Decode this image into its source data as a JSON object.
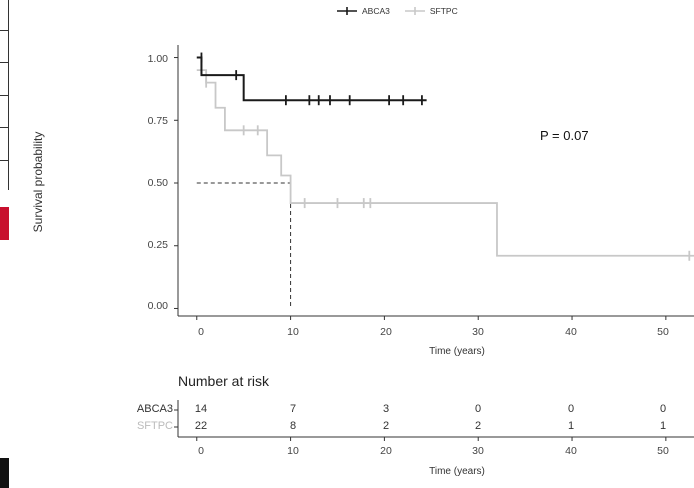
{
  "legend": {
    "items": [
      {
        "name": "ABCA3",
        "color": "#1a1a1a"
      },
      {
        "name": "SFTPC",
        "color": "#c8c8c8"
      }
    ]
  },
  "annotation": {
    "pvalue": "P = 0.07"
  },
  "chart_data": {
    "type": "line",
    "subtype": "kaplan-meier step",
    "title": "",
    "xlabel": "Time (years)",
    "ylabel": "Survival probability",
    "xlim": [
      -2,
      53
    ],
    "ylim": [
      -0.03,
      1.05
    ],
    "x_ticks": [
      "0",
      "10",
      "20",
      "30",
      "40",
      "50"
    ],
    "y_ticks": [
      "0.00",
      "0.25",
      "0.50",
      "0.75",
      "1.00"
    ],
    "series": [
      {
        "name": "ABCA3",
        "color": "#1a1a1a",
        "steps": [
          [
            0,
            1.0
          ],
          [
            0.5,
            0.93
          ],
          [
            5,
            0.83
          ],
          [
            24.5,
            0.83
          ]
        ],
        "censored": [
          [
            0.5,
            1.0
          ],
          [
            4.2,
            0.93
          ],
          [
            9.5,
            0.83
          ],
          [
            12,
            0.83
          ],
          [
            13,
            0.83
          ],
          [
            14.2,
            0.83
          ],
          [
            16.3,
            0.83
          ],
          [
            20.5,
            0.83
          ],
          [
            22,
            0.83
          ],
          [
            24,
            0.83
          ]
        ]
      },
      {
        "name": "SFTPC",
        "color": "#c8c8c8",
        "steps": [
          [
            0,
            0.95
          ],
          [
            1.0,
            0.9
          ],
          [
            2.0,
            0.8
          ],
          [
            3.0,
            0.71
          ],
          [
            7.5,
            0.61
          ],
          [
            9.0,
            0.53
          ],
          [
            10.0,
            0.42
          ],
          [
            32.0,
            0.21
          ],
          [
            53,
            0.21
          ]
        ],
        "censored": [
          [
            1.0,
            0.9
          ],
          [
            5.0,
            0.71
          ],
          [
            6.5,
            0.71
          ],
          [
            11.5,
            0.42
          ],
          [
            15.0,
            0.42
          ],
          [
            17.8,
            0.42
          ],
          [
            18.5,
            0.42
          ],
          [
            52.5,
            0.21
          ]
        ]
      }
    ],
    "median_reference": {
      "y": 0.5,
      "x": 10,
      "style": "dashed"
    },
    "risk_table": {
      "title": "Number at risk",
      "times": [
        "0",
        "10",
        "20",
        "30",
        "40",
        "50"
      ],
      "xlabel": "Time (years)",
      "rows": [
        {
          "label": "ABCA3",
          "color": "#333333",
          "values": [
            14,
            7,
            3,
            0,
            0,
            0
          ]
        },
        {
          "label": "SFTPC",
          "color": "#bbbbbb",
          "values": [
            22,
            8,
            2,
            2,
            1,
            1
          ]
        }
      ]
    }
  }
}
